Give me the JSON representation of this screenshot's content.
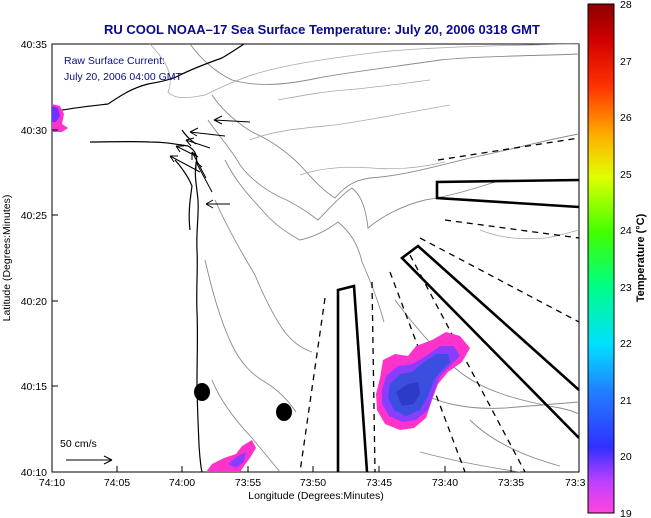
{
  "title": "RU COOL  NOAA–17  Sea Surface Temperature:  July 20, 2006 0318 GMT",
  "current_label_1": "Raw Surface Current:",
  "current_label_2": "July 20, 2006 04:00 GMT",
  "scale_label": "50 cm/s",
  "xlabel": "Longitude (Degrees:Minutes)",
  "ylabel": "Latitude (Degrees:Minutes)",
  "colorbar_label": "Temperature (°C)",
  "x_ticks": [
    "74:10",
    "74:05",
    "74:00",
    "73:55",
    "73:50",
    "73:45",
    "73:40",
    "73:35",
    "73:3"
  ],
  "y_ticks": [
    "40:35",
    "40:30",
    "40:25",
    "40:20",
    "40:15",
    "40:10"
  ],
  "colorbar_ticks": [
    "28",
    "27",
    "26",
    "25",
    "24",
    "23",
    "22",
    "21",
    "20",
    "19"
  ],
  "colors": {
    "title": "#0a0a8c",
    "colorbar_top": "#8b0000",
    "colorbar_bottom": "#ff33cc",
    "sst_patch_warm_edge": "#ff33cc",
    "sst_patch_core": "#3a4fe0"
  },
  "sst_range": [
    19,
    28
  ]
}
